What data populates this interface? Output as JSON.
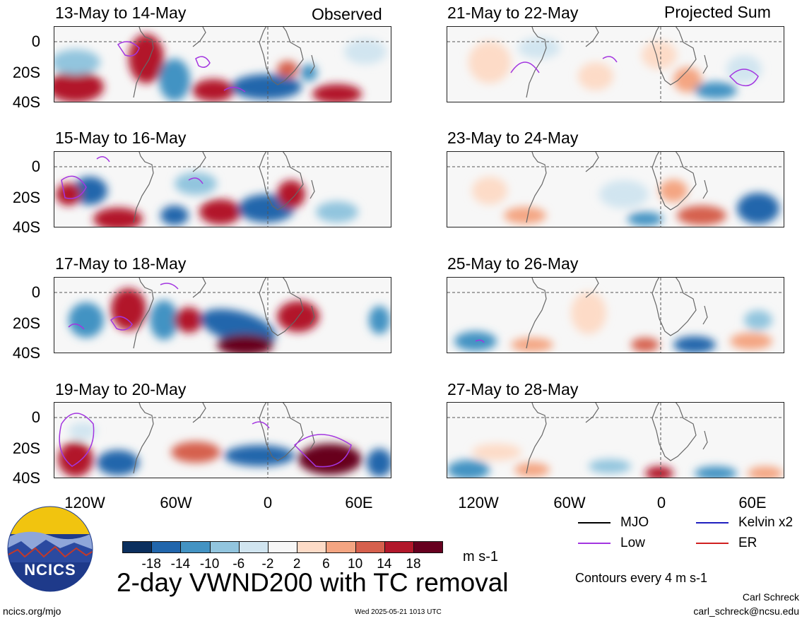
{
  "headers": {
    "left": "Observed",
    "right": "Projected Sum"
  },
  "left_panels": [
    {
      "title": "13-May to 14-May"
    },
    {
      "title": "15-May to 16-May"
    },
    {
      "title": "17-May to 18-May"
    },
    {
      "title": "19-May to 20-May"
    }
  ],
  "right_panels": [
    {
      "title": "21-May to 22-May"
    },
    {
      "title": "23-May to 24-May"
    },
    {
      "title": "25-May to 26-May"
    },
    {
      "title": "27-May to 28-May"
    }
  ],
  "lat_labels": [
    "0",
    "20S",
    "40S"
  ],
  "lon_labels": [
    "120W",
    "60W",
    "0",
    "60E"
  ],
  "colorbar": {
    "colors": [
      "#0b2f5e",
      "#2166ac",
      "#4393c3",
      "#92c5de",
      "#d1e5f0",
      "#f7f7f7",
      "#fddbc7",
      "#f4a582",
      "#d6604d",
      "#b2182b",
      "#67001f"
    ],
    "labels": [
      "-18",
      "-14",
      "-10",
      "-6",
      "-2",
      "2",
      "6",
      "10",
      "14",
      "18"
    ],
    "units": "m s-1"
  },
  "legend": {
    "items": [
      {
        "label": "MJO",
        "color": "#000000"
      },
      {
        "label": "Kelvin x2",
        "color": "#1f1fbf"
      },
      {
        "label": "Low",
        "color": "#a335e0"
      },
      {
        "label": "ER",
        "color": "#d02020"
      }
    ],
    "contours_note": "Contours every 4 m s-1"
  },
  "main_title": "2-day VWND200 with TC removal",
  "logo_text": "NCICS",
  "footer": {
    "url": "ncics.org/mjo",
    "timestamp": "Wed 2025-05-21 1013 UTC",
    "author": "Carl Schreck",
    "email": "carl_schreck@ncsu.edu"
  }
}
